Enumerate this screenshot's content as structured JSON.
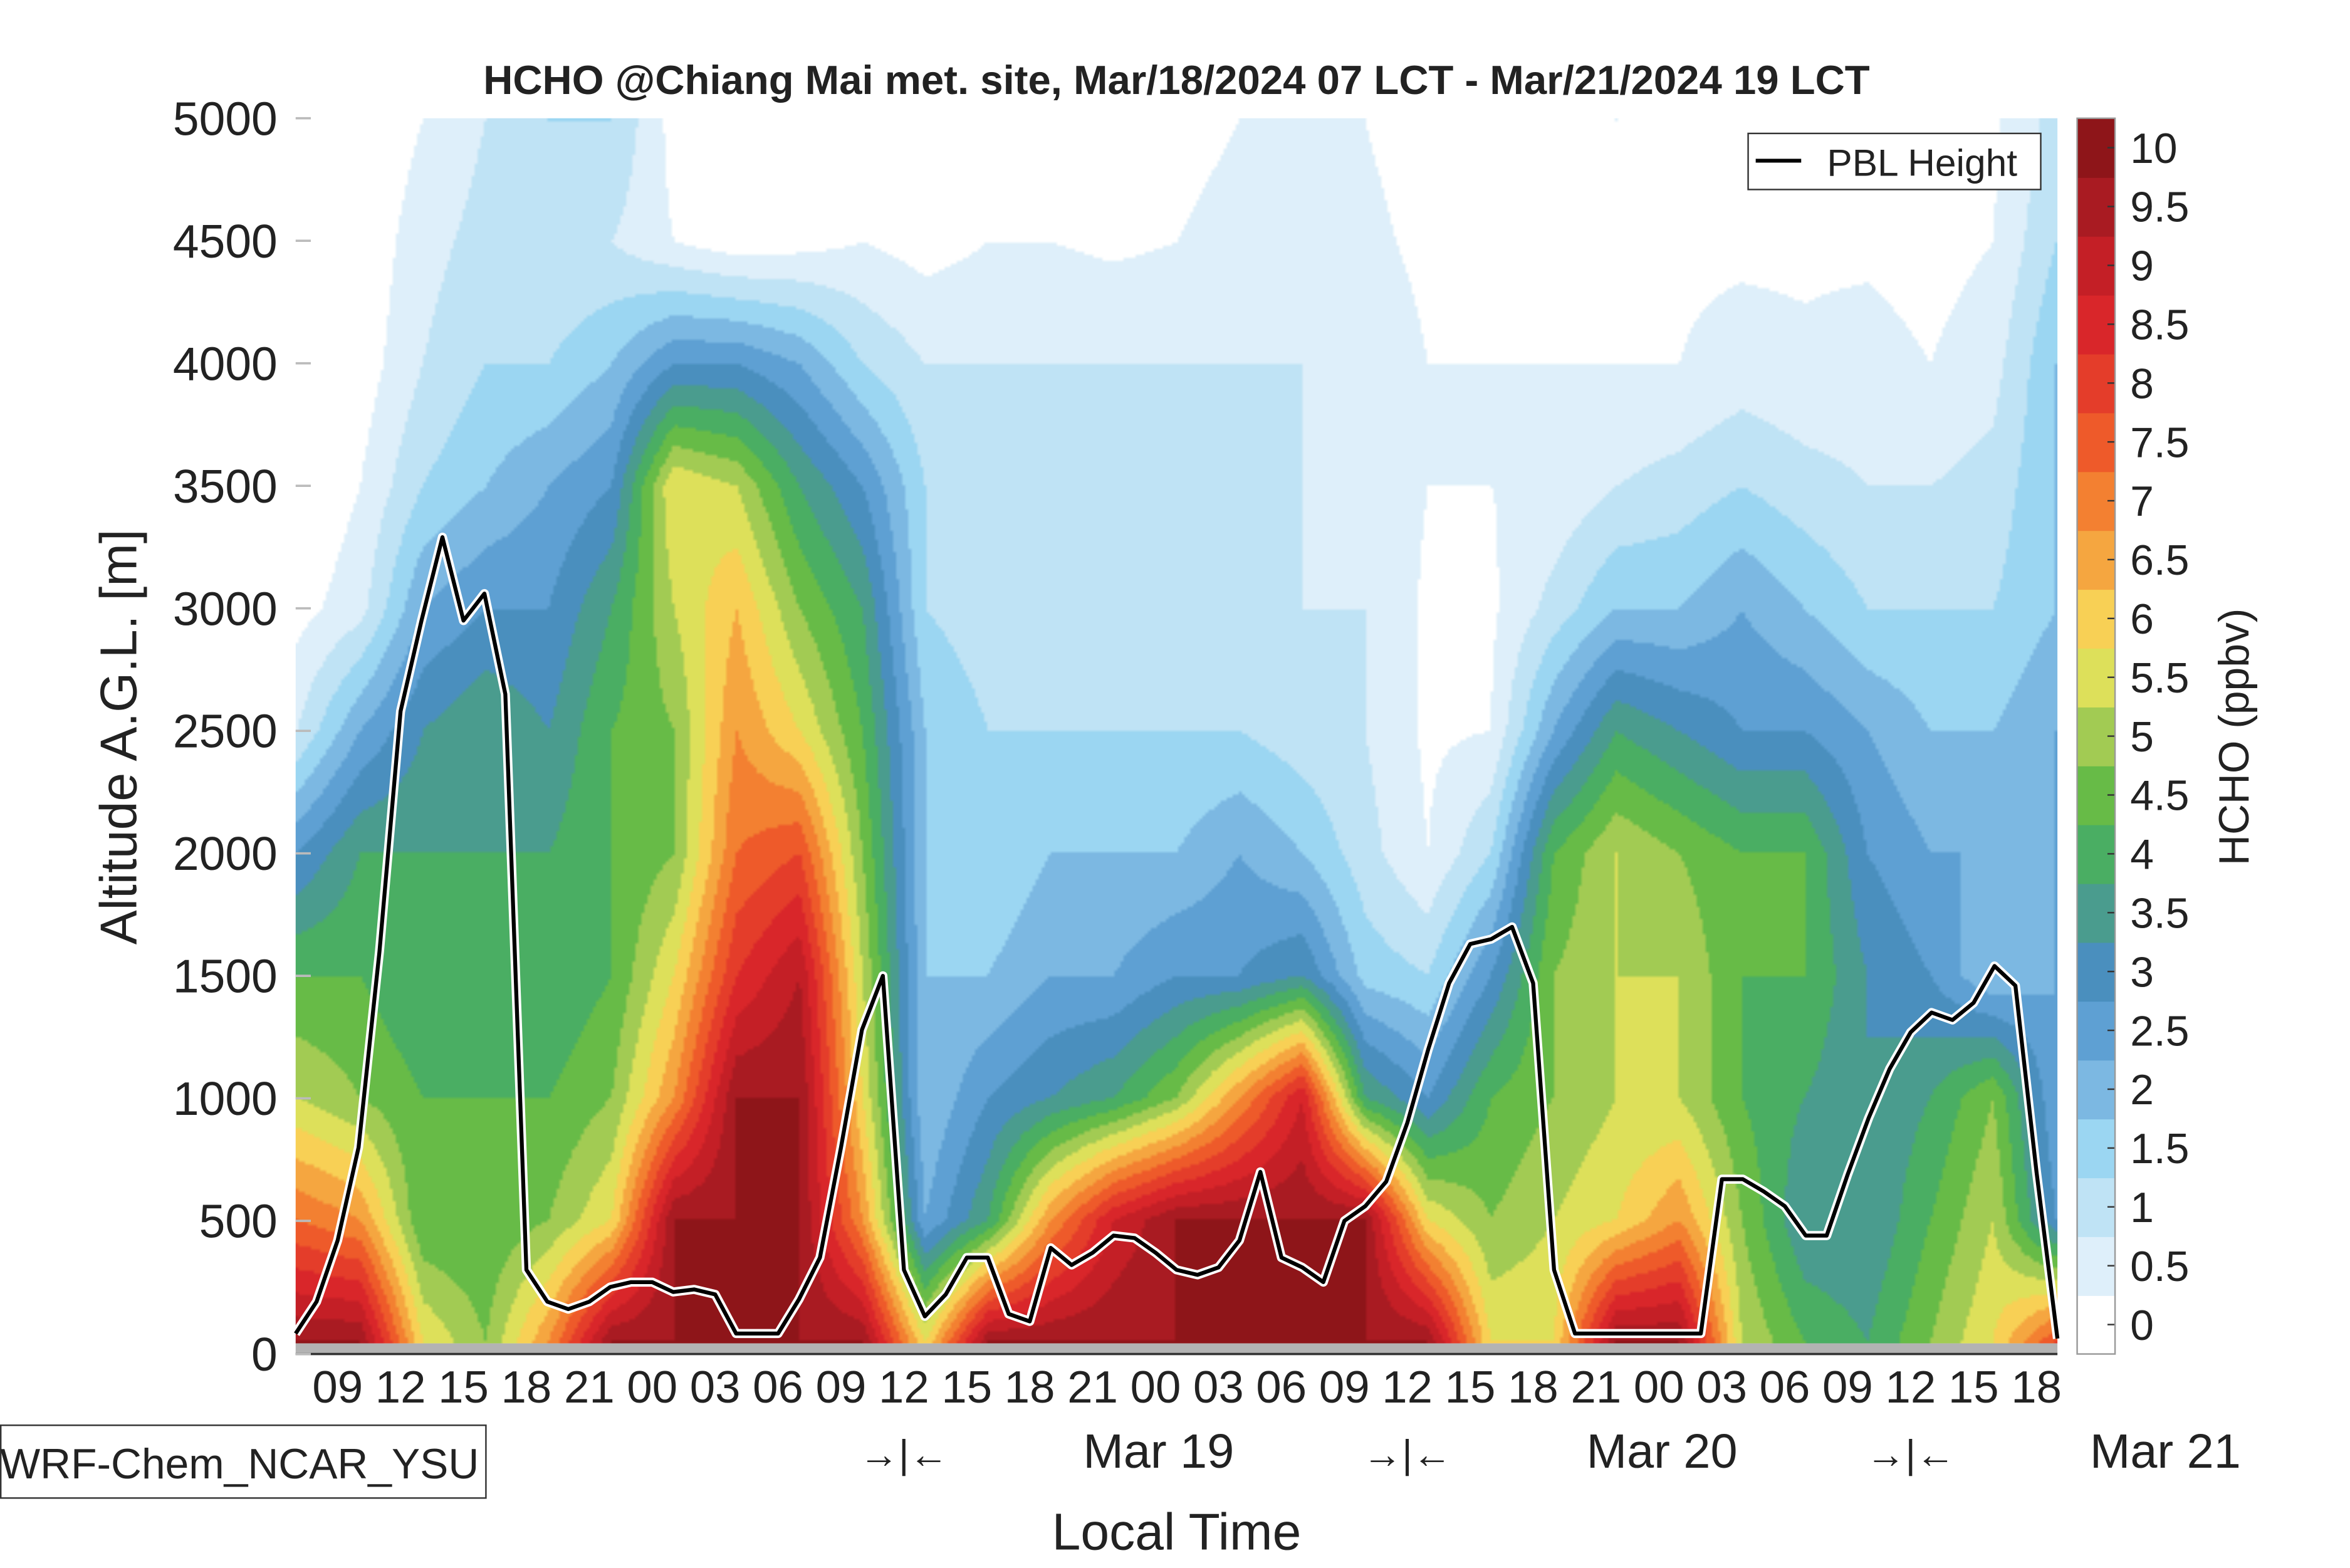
{
  "chart_data": {
    "type": "heatmap",
    "title": "HCHO @Chiang Mai met. site, Mar/18/2024 07 LCT - Mar/21/2024 19 LCT",
    "xlabel": "Local Time",
    "ylabel": "Altitude A.G.L. [m]",
    "colorbar_label": "HCHO (ppbv)",
    "model_label": "WRF-Chem_NCAR_YSU",
    "legend": {
      "entries": [
        "PBL Height"
      ],
      "placement": "top-right"
    },
    "xlim_hours": [
      0,
      84
    ],
    "ylim": [
      0,
      5000
    ],
    "y_ticks": [
      0,
      500,
      1000,
      1500,
      2000,
      2500,
      3000,
      3500,
      4000,
      4500,
      5000
    ],
    "x_tick_hours": [
      2,
      5,
      8,
      11,
      14,
      17,
      20,
      23,
      26,
      29,
      32,
      35,
      38,
      41,
      44,
      47,
      50,
      53,
      56,
      59,
      62,
      65,
      68,
      71,
      74,
      77,
      80,
      83
    ],
    "x_tick_labels": [
      "09",
      "12",
      "15",
      "18",
      "21",
      "00",
      "03",
      "06",
      "09",
      "12",
      "15",
      "18",
      "21",
      "00",
      "03",
      "06",
      "09",
      "12",
      "15",
      "18",
      "21",
      "00",
      "03",
      "06",
      "09",
      "12",
      "15",
      "18"
    ],
    "day_labels": [
      {
        "hour": 29,
        "arrow": "→|←",
        "hour_label": 41,
        "label": "Mar 19"
      },
      {
        "hour": 53,
        "arrow": "→|←",
        "hour_label": 65,
        "label": "Mar 20"
      },
      {
        "hour": 77,
        "arrow": "→|←",
        "hour_label": 89,
        "label": "Mar 21"
      }
    ],
    "colorbar_levels": [
      0,
      0.5,
      1,
      1.5,
      2,
      2.5,
      3,
      3.5,
      4,
      4.5,
      5,
      5.5,
      6,
      6.5,
      7,
      7.5,
      8,
      8.5,
      9,
      9.5,
      10
    ],
    "colorbar_tick_labels": [
      "0",
      "0.5",
      "1",
      "1.5",
      "2",
      "2.5",
      "3",
      "3.5",
      "4",
      "4.5",
      "5",
      "5.5",
      "6",
      "6.5",
      "7",
      "7.5",
      "8",
      "8.5",
      "9",
      "9.5",
      "10"
    ],
    "colors": [
      "#ffffff",
      "#deeffa",
      "#bfe3f5",
      "#9bd6f2",
      "#7cb8e2",
      "#5ea0d3",
      "#4a8fbe",
      "#4a9c8e",
      "#4aae63",
      "#67bb47",
      "#a2cb53",
      "#dde05a",
      "#f8d055",
      "#f5a640",
      "#f38031",
      "#ee5a2a",
      "#e43d2a",
      "#d9262a",
      "#c41f26",
      "#a91b22",
      "#8e1519"
    ],
    "field": {
      "hours": [
        0,
        3,
        6,
        9,
        12,
        15,
        18,
        21,
        24,
        27,
        30,
        33,
        36,
        39,
        42,
        45,
        48,
        51,
        54,
        57,
        60,
        63,
        66,
        69,
        72,
        75,
        78,
        81,
        84
      ],
      "altitudes": [
        0,
        500,
        1000,
        1500,
        2000,
        2500,
        3000,
        3500,
        4000,
        4500,
        5000
      ],
      "values": [
        [
          10,
          7.5,
          5.5,
          4.5,
          3,
          1,
          0.3,
          0,
          0,
          0,
          0
        ],
        [
          10,
          7,
          5,
          4.5,
          4,
          2.5,
          0.8,
          0.5,
          0.2,
          0.1,
          0
        ],
        [
          6,
          4.5,
          4.5,
          4,
          4,
          3.5,
          2.5,
          1.5,
          1,
          0.8,
          0.5
        ],
        [
          5,
          4.5,
          4.5,
          4,
          4,
          4,
          3,
          2,
          1.5,
          1.2,
          1
        ],
        [
          7,
          5,
          4.5,
          4,
          4,
          3.5,
          3,
          2.5,
          1.5,
          1,
          1.5
        ],
        [
          10,
          6,
          5,
          4.5,
          4.5,
          4.5,
          4,
          3,
          2,
          1,
          1.5
        ],
        [
          10,
          10,
          7,
          6,
          5,
          5,
          5.5,
          6,
          3,
          0.5,
          0.3
        ],
        [
          10,
          10,
          10,
          8.5,
          7.5,
          7,
          6.5,
          5.5,
          3,
          0.2,
          0
        ],
        [
          10,
          10,
          10,
          9.5,
          8,
          6,
          5,
          4,
          2.5,
          0.3,
          0
        ],
        [
          10,
          7,
          6,
          5.5,
          5,
          4.5,
          4,
          3,
          1.5,
          0.5,
          0
        ],
        [
          6,
          2.5,
          2,
          2,
          2,
          2,
          1.5,
          1.5,
          1,
          0.3,
          0
        ],
        [
          10,
          4,
          3,
          2,
          1.5,
          1.5,
          1.2,
          1,
          1,
          0.5,
          0.2
        ],
        [
          10,
          7,
          3.5,
          2.5,
          2,
          1.5,
          1.2,
          1,
          1,
          0.5,
          0.2
        ],
        [
          10,
          9,
          4,
          2.5,
          2,
          1.5,
          1.2,
          1.2,
          1,
          0.4,
          0
        ],
        [
          10,
          10,
          5,
          3,
          2,
          1.5,
          1,
          1,
          1,
          0.5,
          0.3
        ],
        [
          10,
          10,
          7,
          3,
          2.5,
          1.5,
          1.2,
          1,
          1,
          0.7,
          0.5
        ],
        [
          10,
          10,
          9,
          3.5,
          2,
          1.2,
          1,
          1,
          1,
          0.7,
          0.5
        ],
        [
          10,
          10,
          4,
          1.8,
          1.2,
          1,
          1,
          0.9,
          0.8,
          0.6,
          0.5
        ],
        [
          10,
          6,
          3,
          1.5,
          0.5,
          0.4,
          0.4,
          0.5,
          0.5,
          0.4,
          0.3
        ],
        [
          6,
          5,
          4.5,
          3,
          1.5,
          0.5,
          0.4,
          0.5,
          0.5,
          0.4,
          0.3
        ],
        [
          6,
          5.5,
          5,
          5,
          4.5,
          2.5,
          1.2,
          0.6,
          0.5,
          0.4,
          0.4
        ],
        [
          10,
          6,
          5.5,
          5.5,
          5.5,
          4,
          2,
          1,
          0.5,
          0.4,
          0.5
        ],
        [
          10,
          7,
          5.5,
          5.5,
          5,
          3.5,
          2,
          1.2,
          0.5,
          0.4,
          0.3
        ],
        [
          5.5,
          5,
          4.5,
          4.5,
          4.5,
          3,
          2.5,
          1.5,
          0.7,
          0.4,
          0.3
        ],
        [
          4.5,
          3.5,
          4,
          4.5,
          4.5,
          3,
          2,
          1.2,
          0.6,
          0.4,
          0.3
        ],
        [
          4,
          3.5,
          3.5,
          3.5,
          3,
          2.5,
          1.5,
          1,
          0.7,
          0.4,
          0.3
        ],
        [
          5,
          4.5,
          4,
          3,
          2.5,
          2,
          1.5,
          1,
          0.5,
          0.3,
          0.3
        ],
        [
          6,
          5.5,
          5,
          2,
          2.5,
          2,
          1.5,
          1.2,
          0.8,
          0.5,
          0.4
        ],
        [
          8,
          3,
          2.5,
          2.5,
          2.5,
          2.5,
          2,
          2,
          2,
          1.5,
          1.2
        ]
      ]
    },
    "series": [
      {
        "name": "PBL Height",
        "color": "#000000",
        "hours": [
          0,
          1,
          2,
          3,
          4,
          5,
          6,
          7,
          8,
          9,
          10,
          11,
          12,
          13,
          14,
          15,
          16,
          17,
          18,
          19,
          20,
          21,
          22,
          23,
          24,
          25,
          26,
          27,
          28,
          29,
          30,
          31,
          32,
          33,
          34,
          35,
          36,
          37,
          38,
          39,
          40,
          41,
          42,
          43,
          44,
          45,
          46,
          47,
          48,
          49,
          50,
          51,
          52,
          53,
          54,
          55,
          56,
          57,
          58,
          59,
          60,
          61,
          62,
          63,
          64,
          65,
          66,
          67,
          68,
          69,
          70,
          71,
          72,
          73,
          74,
          75,
          76,
          77,
          78,
          79,
          80,
          81,
          82,
          83,
          84
        ],
        "values": [
          40,
          170,
          420,
          800,
          1600,
          2580,
          2950,
          3290,
          2950,
          3060,
          2650,
          300,
          170,
          140,
          170,
          230,
          250,
          250,
          210,
          220,
          200,
          40,
          40,
          40,
          180,
          350,
          800,
          1280,
          1500,
          300,
          110,
          200,
          350,
          350,
          120,
          90,
          390,
          320,
          370,
          440,
          430,
          370,
          300,
          280,
          310,
          420,
          700,
          350,
          310,
          250,
          500,
          560,
          660,
          900,
          1200,
          1470,
          1630,
          1650,
          1700,
          1470,
          300,
          40,
          40,
          40,
          40,
          40,
          40,
          40,
          670,
          670,
          620,
          560,
          440,
          440,
          690,
          920,
          1120,
          1270,
          1350,
          1320,
          1390,
          1540,
          1460,
          700,
          20
        ]
      }
    ]
  }
}
